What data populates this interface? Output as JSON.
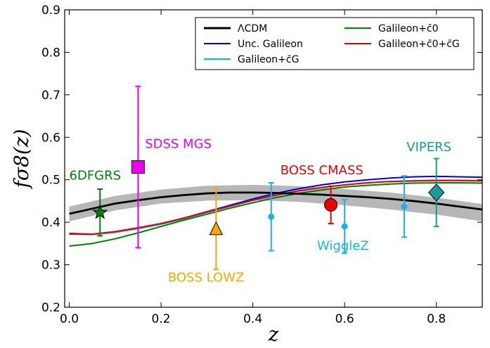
{
  "chart_data": {
    "type": "line",
    "title": "",
    "xlabel": "z",
    "ylabel": "fσ8(z)",
    "xlim": [
      -0.01,
      0.9
    ],
    "ylim": [
      0.2,
      0.9
    ],
    "grid": false,
    "legend_position": "top-right",
    "x_ticks": [
      "0.0",
      "0.2",
      "0.4",
      "0.6",
      "0.8"
    ],
    "y_ticks": [
      "0.2",
      "0.3",
      "0.4",
      "0.5",
      "0.6",
      "0.7",
      "0.8",
      "0.9"
    ],
    "legend": [
      {
        "label": "ΛCDM",
        "color": "#000000"
      },
      {
        "label": "Unc. Galileon",
        "color": "#0000ee"
      },
      {
        "label": "Galileon+c̄G",
        "color": "#00c0c0"
      },
      {
        "label": "Galileon+c̄0",
        "color": "#008000"
      },
      {
        "label": "Galileon+c̄0+c̄G",
        "color": "#ee0000"
      }
    ],
    "band": {
      "name": "ΛCDM",
      "x": [
        0.0,
        0.1,
        0.2,
        0.3,
        0.4,
        0.5,
        0.6,
        0.7,
        0.8,
        0.9
      ],
      "lower": [
        0.402,
        0.428,
        0.444,
        0.451,
        0.452,
        0.448,
        0.44,
        0.43,
        0.418,
        0.402
      ],
      "upper": [
        0.437,
        0.462,
        0.477,
        0.486,
        0.488,
        0.485,
        0.478,
        0.47,
        0.458,
        0.443
      ]
    },
    "series": [
      {
        "name": "ΛCDM",
        "color": "#000000",
        "x": [
          0.0,
          0.05,
          0.1,
          0.15,
          0.2,
          0.25,
          0.3,
          0.35,
          0.4,
          0.45,
          0.5,
          0.55,
          0.6,
          0.65,
          0.7,
          0.75,
          0.8,
          0.85,
          0.9
        ],
        "y": [
          0.42,
          0.432,
          0.444,
          0.452,
          0.459,
          0.464,
          0.468,
          0.47,
          0.47,
          0.469,
          0.467,
          0.465,
          0.462,
          0.459,
          0.455,
          0.45,
          0.444,
          0.437,
          0.43
        ]
      },
      {
        "name": "Unc. Galileon",
        "color": "#0000ee",
        "x": [
          0.0,
          0.05,
          0.1,
          0.15,
          0.2,
          0.25,
          0.3,
          0.35,
          0.4,
          0.45,
          0.5,
          0.55,
          0.6,
          0.65,
          0.7,
          0.75,
          0.8,
          0.85,
          0.9
        ],
        "y": [
          0.373,
          0.372,
          0.378,
          0.387,
          0.397,
          0.41,
          0.425,
          0.44,
          0.455,
          0.468,
          0.479,
          0.488,
          0.495,
          0.5,
          0.504,
          0.507,
          0.508,
          0.507,
          0.506
        ]
      },
      {
        "name": "Galileon+c̄G",
        "color": "#00c0c0",
        "x": [
          0.0,
          0.05,
          0.1,
          0.15,
          0.2,
          0.25,
          0.3,
          0.35,
          0.4,
          0.45,
          0.5,
          0.55,
          0.6,
          0.65,
          0.7,
          0.75,
          0.8,
          0.85,
          0.9
        ],
        "y": [
          0.372,
          0.371,
          0.376,
          0.385,
          0.395,
          0.408,
          0.423,
          0.437,
          0.451,
          0.463,
          0.474,
          0.482,
          0.488,
          0.493,
          0.496,
          0.498,
          0.499,
          0.499,
          0.498
        ]
      },
      {
        "name": "Galileon+c̄0",
        "color": "#008000",
        "x": [
          0.0,
          0.05,
          0.1,
          0.15,
          0.2,
          0.25,
          0.3,
          0.35,
          0.4,
          0.45,
          0.5,
          0.55,
          0.6,
          0.65,
          0.7,
          0.75,
          0.8,
          0.85,
          0.9
        ],
        "y": [
          0.344,
          0.35,
          0.361,
          0.375,
          0.39,
          0.405,
          0.419,
          0.433,
          0.446,
          0.458,
          0.468,
          0.476,
          0.483,
          0.487,
          0.49,
          0.492,
          0.493,
          0.493,
          0.492
        ]
      },
      {
        "name": "Galileon+c̄0+c̄G",
        "color": "#ee0000",
        "x": [
          0.0,
          0.05,
          0.1,
          0.15,
          0.2,
          0.25,
          0.3,
          0.35,
          0.4,
          0.45,
          0.5,
          0.55,
          0.6,
          0.65,
          0.7,
          0.75,
          0.8,
          0.85,
          0.9
        ],
        "y": [
          0.374,
          0.372,
          0.378,
          0.387,
          0.397,
          0.41,
          0.424,
          0.438,
          0.452,
          0.464,
          0.474,
          0.482,
          0.488,
          0.493,
          0.496,
          0.497,
          0.498,
          0.498,
          0.497
        ]
      }
    ],
    "data_points": [
      {
        "label": "6DFGRS",
        "x": 0.067,
        "y": 0.423,
        "err": 0.055,
        "color": "#008000",
        "marker": "star"
      },
      {
        "label": "SDSS MGS",
        "x": 0.15,
        "y": 0.53,
        "err": 0.19,
        "color": "#ee00ee",
        "marker": "square"
      },
      {
        "label": "BOSS LOWZ",
        "x": 0.32,
        "y": 0.384,
        "err": 0.095,
        "color": "#ffa500",
        "marker": "triangle"
      },
      {
        "label": "BOSS CMASS",
        "x": 0.57,
        "y": 0.441,
        "err": 0.044,
        "color": "#ee0000",
        "marker": "circle"
      },
      {
        "label": "WiggleZ",
        "x": 0.44,
        "y": 0.413,
        "err": 0.08,
        "color": "#1ab2e8",
        "marker": "dot"
      },
      {
        "label": "WiggleZ",
        "x": 0.6,
        "y": 0.39,
        "err": 0.063,
        "color": "#1ab2e8",
        "marker": "dot"
      },
      {
        "label": "WiggleZ",
        "x": 0.73,
        "y": 0.437,
        "err": 0.072,
        "color": "#1ab2e8",
        "marker": "dot"
      },
      {
        "label": "VIPERS",
        "x": 0.8,
        "y": 0.47,
        "err": 0.08,
        "color": "#1a9a9a",
        "marker": "diamond"
      }
    ],
    "annotations": [
      {
        "text": "SDSS MGS",
        "color": "#ee00ee",
        "x": 0.165,
        "y": 0.575
      },
      {
        "text": "6DFGRS",
        "color": "#008000",
        "x": 0.0,
        "y": 0.5
      },
      {
        "text": "BOSS CMASS",
        "color": "#ee0000",
        "x": 0.46,
        "y": 0.513
      },
      {
        "text": "VIPERS",
        "color": "#1a9a9a",
        "x": 0.735,
        "y": 0.567
      },
      {
        "text": "WiggleZ",
        "color": "#1ab2e8",
        "x": 0.54,
        "y": 0.335
      },
      {
        "text": "BOSS LOWZ",
        "color": "#ffa500",
        "x": 0.215,
        "y": 0.26
      }
    ]
  }
}
